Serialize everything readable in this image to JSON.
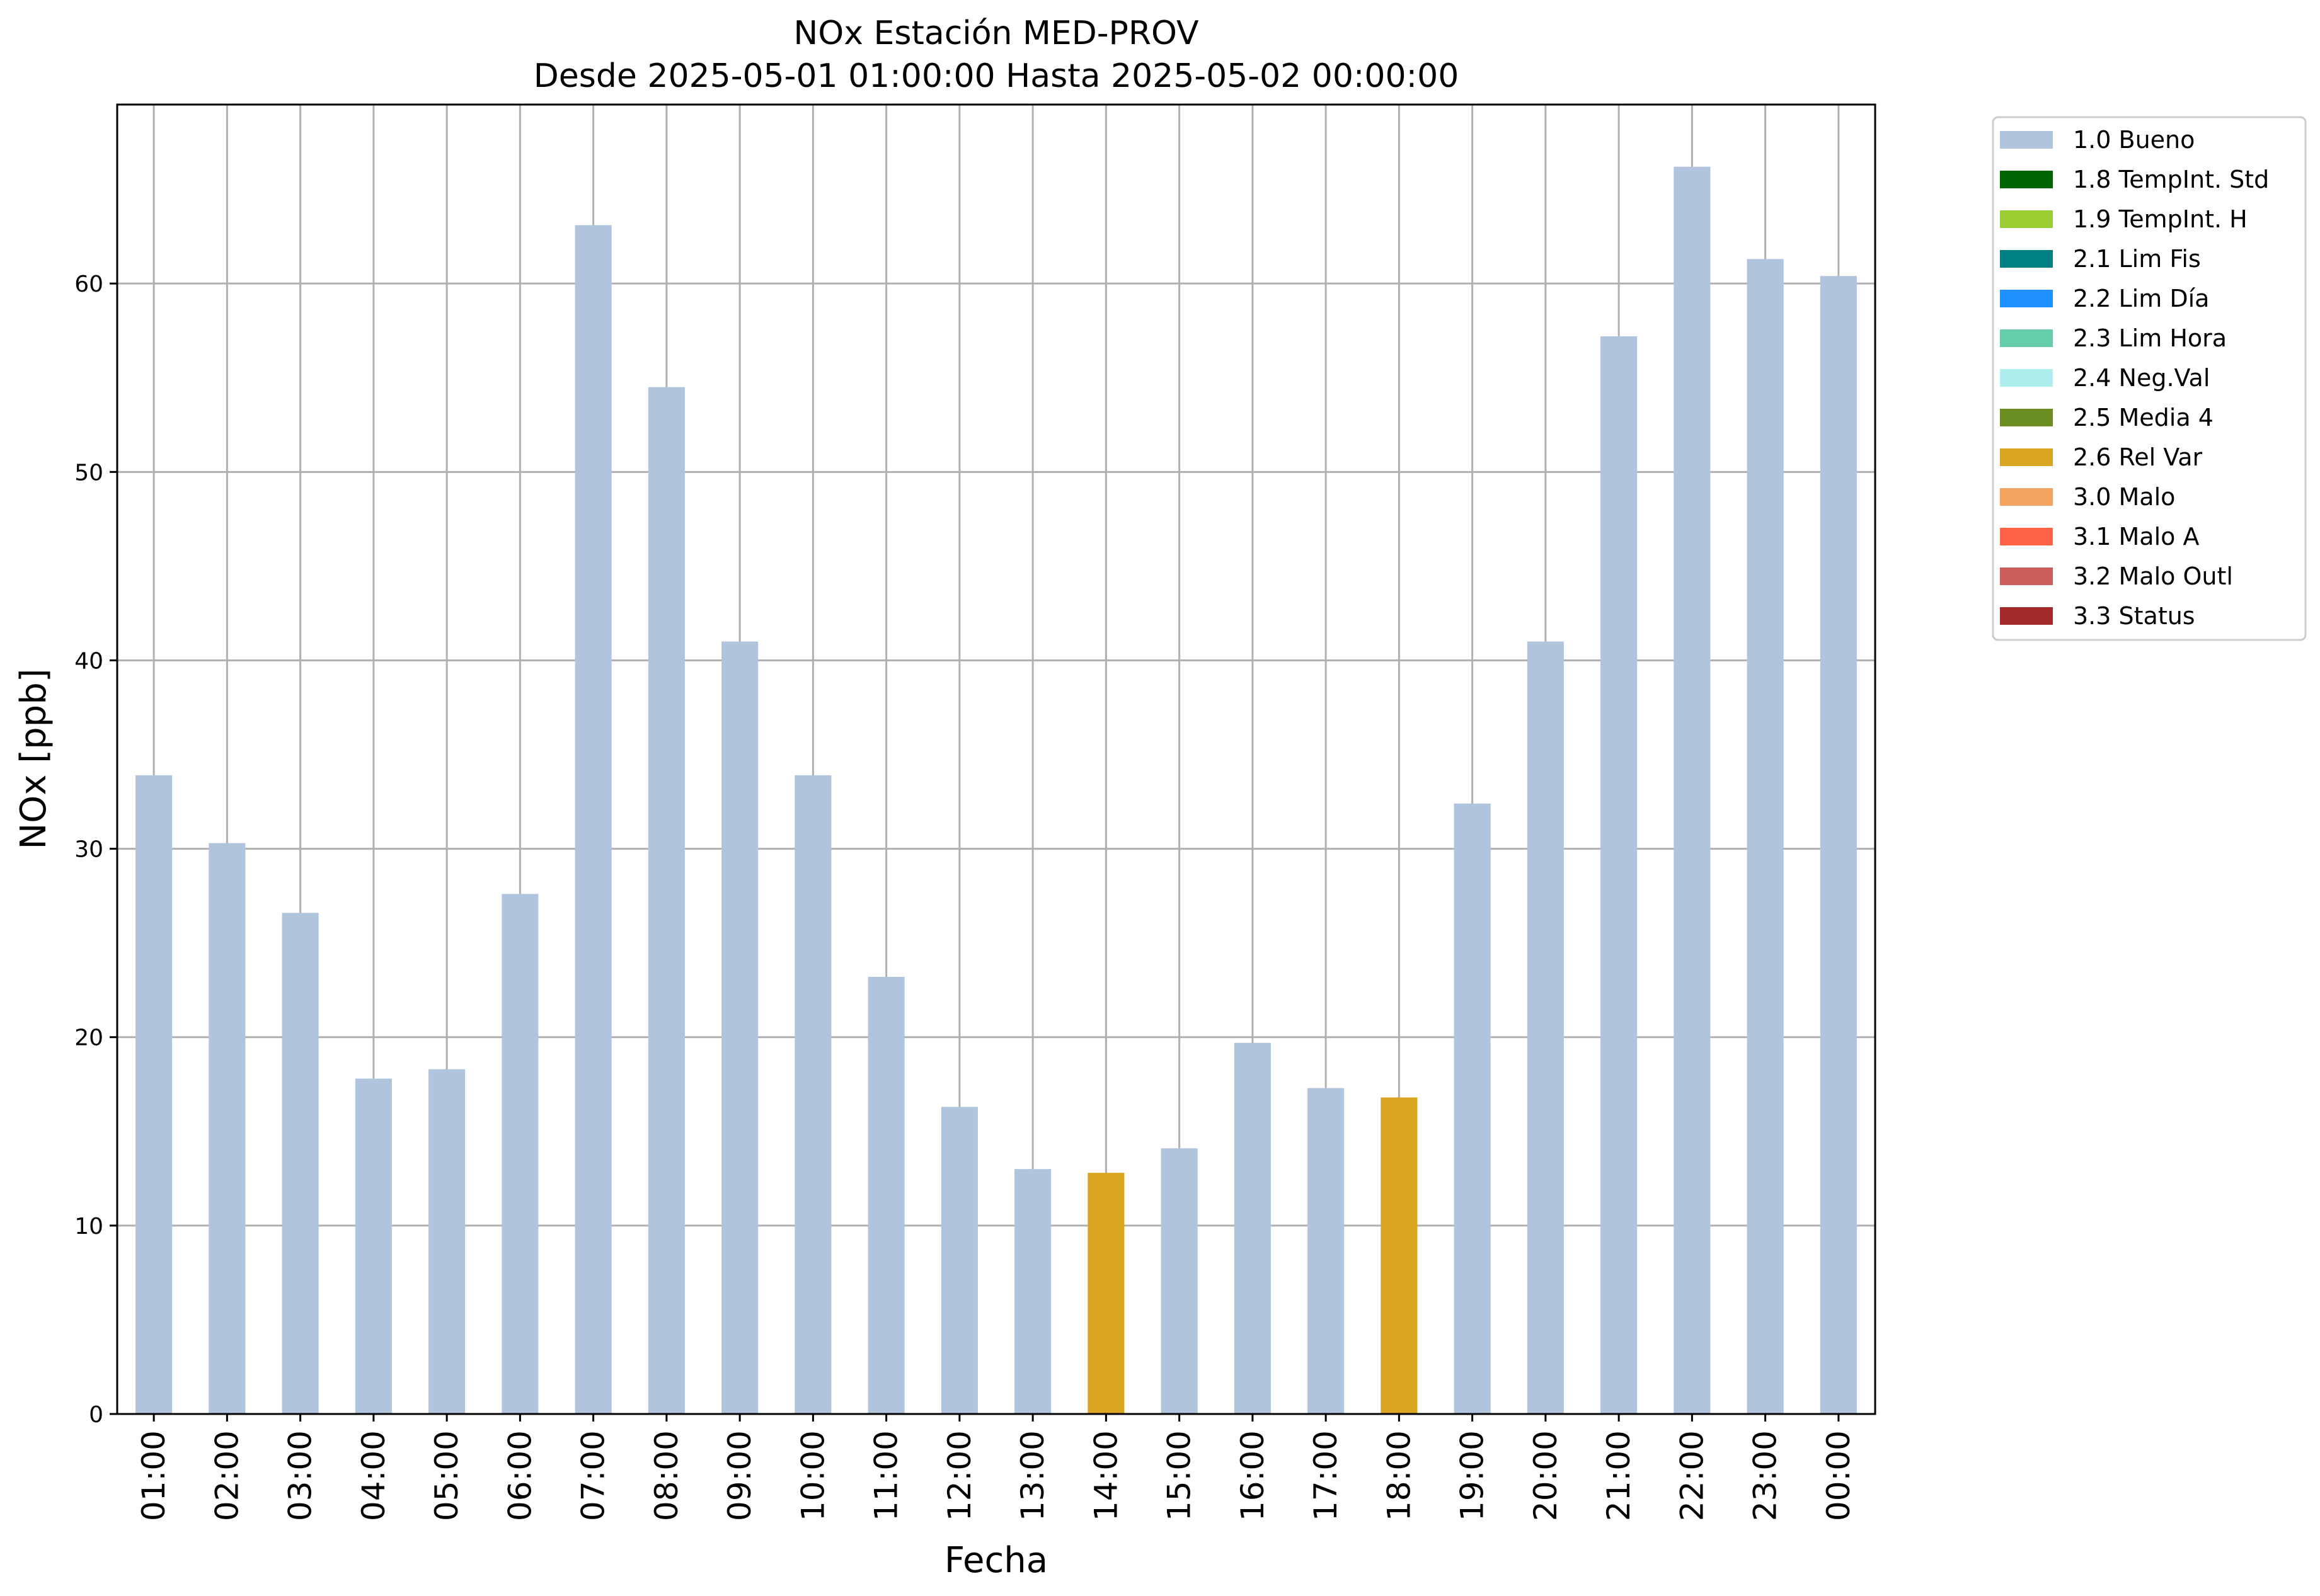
{
  "chart_data": {
    "type": "bar",
    "title_line1": "NOx Estación MED-PROV",
    "title_line2": "Desde 2025-05-01 01:00:00 Hasta 2025-05-02 00:00:00",
    "xlabel": "Fecha",
    "ylabel": "NOx [ppb]",
    "ylim": [
      0,
      69.5
    ],
    "yticks": [
      0,
      10,
      20,
      30,
      40,
      50,
      60
    ],
    "grid": true,
    "legend_position": "outside-top-right",
    "categories": [
      "01:00",
      "02:00",
      "03:00",
      "04:00",
      "05:00",
      "06:00",
      "07:00",
      "08:00",
      "09:00",
      "10:00",
      "11:00",
      "12:00",
      "13:00",
      "14:00",
      "15:00",
      "16:00",
      "17:00",
      "18:00",
      "19:00",
      "20:00",
      "21:00",
      "22:00",
      "23:00",
      "00:00"
    ],
    "values": [
      33.9,
      30.3,
      26.6,
      17.8,
      18.3,
      27.6,
      63.1,
      54.5,
      41.0,
      33.9,
      23.2,
      16.3,
      13.0,
      12.8,
      14.1,
      19.7,
      17.3,
      16.8,
      32.4,
      41.0,
      57.2,
      66.2,
      61.3,
      60.4
    ],
    "flags": [
      "1.0 Bueno",
      "1.0 Bueno",
      "1.0 Bueno",
      "1.0 Bueno",
      "1.0 Bueno",
      "1.0 Bueno",
      "1.0 Bueno",
      "1.0 Bueno",
      "1.0 Bueno",
      "1.0 Bueno",
      "1.0 Bueno",
      "1.0 Bueno",
      "1.0 Bueno",
      "2.6 Rel Var",
      "1.0 Bueno",
      "1.0 Bueno",
      "1.0 Bueno",
      "2.6 Rel Var",
      "1.0 Bueno",
      "1.0 Bueno",
      "1.0 Bueno",
      "1.0 Bueno",
      "1.0 Bueno",
      "1.0 Bueno"
    ],
    "legend": [
      {
        "label": "1.0 Bueno",
        "color": "#b0c4de"
      },
      {
        "label": "1.8 TempInt. Std",
        "color": "#006400"
      },
      {
        "label": "1.9 TempInt. H",
        "color": "#9acd32"
      },
      {
        "label": "2.1 Lim Fis",
        "color": "#008080"
      },
      {
        "label": "2.2 Lim Día",
        "color": "#1e90ff"
      },
      {
        "label": "2.3 Lim Hora",
        "color": "#66cdaa"
      },
      {
        "label": "2.4 Neg.Val",
        "color": "#afeeee"
      },
      {
        "label": "2.5 Media 4",
        "color": "#6b8e23"
      },
      {
        "label": "2.6 Rel Var",
        "color": "#daa520"
      },
      {
        "label": "3.0 Malo",
        "color": "#f4a460"
      },
      {
        "label": "3.1 Malo A",
        "color": "#ff6347"
      },
      {
        "label": "3.2 Malo Outl",
        "color": "#cd5c5c"
      },
      {
        "label": "3.3 Status",
        "color": "#a52a2a"
      }
    ]
  }
}
